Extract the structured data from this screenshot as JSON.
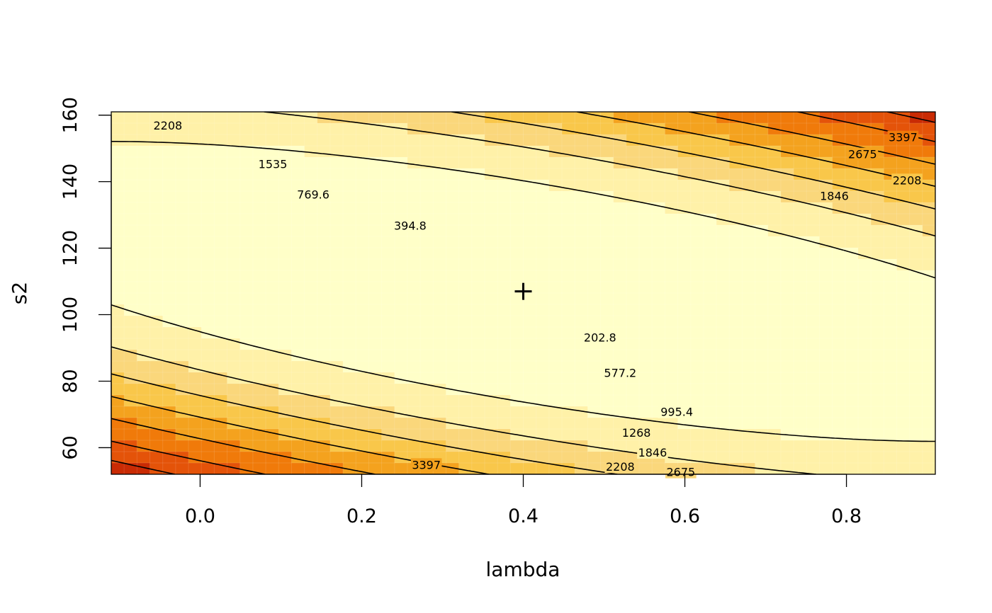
{
  "chart_data": {
    "type": "heatmap",
    "title": "",
    "xlabel": "lambda",
    "ylabel": "s2",
    "xlim": [
      -0.11,
      0.91
    ],
    "ylim": [
      52,
      161
    ],
    "x_ticks": [
      0.0,
      0.2,
      0.4,
      0.6,
      0.8
    ],
    "x_tick_labels": [
      "0.0",
      "0.2",
      "0.4",
      "0.6",
      "0.8"
    ],
    "y_ticks": [
      60,
      80,
      100,
      120,
      140,
      160
    ],
    "y_tick_labels": [
      "60",
      "80",
      "100",
      "120",
      "140",
      "160"
    ],
    "colormap": [
      "#ffffc8",
      "#fff1a8",
      "#fad77b",
      "#f9c74a",
      "#f4a21e",
      "#f07a0a",
      "#e45309",
      "#c92b04",
      "#a50f04",
      "#800026"
    ],
    "minimum": {
      "lambda": 0.4,
      "s2": 107,
      "marker": "+"
    },
    "contours": [
      {
        "level": 202.8,
        "label": "202.8"
      },
      {
        "level": 394.8,
        "label": "394.8"
      },
      {
        "level": 577.2,
        "label": "577.2"
      },
      {
        "level": 769.6,
        "label": "769.6"
      },
      {
        "level": 995.4,
        "label": "995.4"
      },
      {
        "level": 1268,
        "label": "1268"
      },
      {
        "level": 1535,
        "label": "1535"
      },
      {
        "level": 1846,
        "label": "1846"
      },
      {
        "level": 2208,
        "label": "2208"
      },
      {
        "level": 2675,
        "label": "2675"
      },
      {
        "level": 3397,
        "label": "3397"
      }
    ],
    "contour_labels": [
      {
        "text": "202.8",
        "x": 0.495,
        "y": 93.2
      },
      {
        "text": "394.8",
        "x": 0.26,
        "y": 126.8
      },
      {
        "text": "577.2",
        "x": 0.52,
        "y": 82.5
      },
      {
        "text": "769.6",
        "x": 0.14,
        "y": 136.2
      },
      {
        "text": "995.4",
        "x": 0.59,
        "y": 70.8
      },
      {
        "text": "1268",
        "x": 0.54,
        "y": 64.6
      },
      {
        "text": "1535",
        "x": 0.09,
        "y": 145.3
      },
      {
        "text": "1846",
        "x": 0.56,
        "y": 58.6
      },
      {
        "text": "1846",
        "x": 0.785,
        "y": 135.8
      },
      {
        "text": "2208",
        "x": -0.04,
        "y": 157.0
      },
      {
        "text": "2208",
        "x": 0.52,
        "y": 54.3
      },
      {
        "text": "2208",
        "x": 0.875,
        "y": 140.5
      },
      {
        "text": "2675",
        "x": 0.595,
        "y": 52.7
      },
      {
        "text": "2675",
        "x": 0.82,
        "y": 148.3
      },
      {
        "text": "3397",
        "x": 0.28,
        "y": 54.9
      },
      {
        "text": "3397",
        "x": 0.87,
        "y": 153.4
      }
    ]
  }
}
